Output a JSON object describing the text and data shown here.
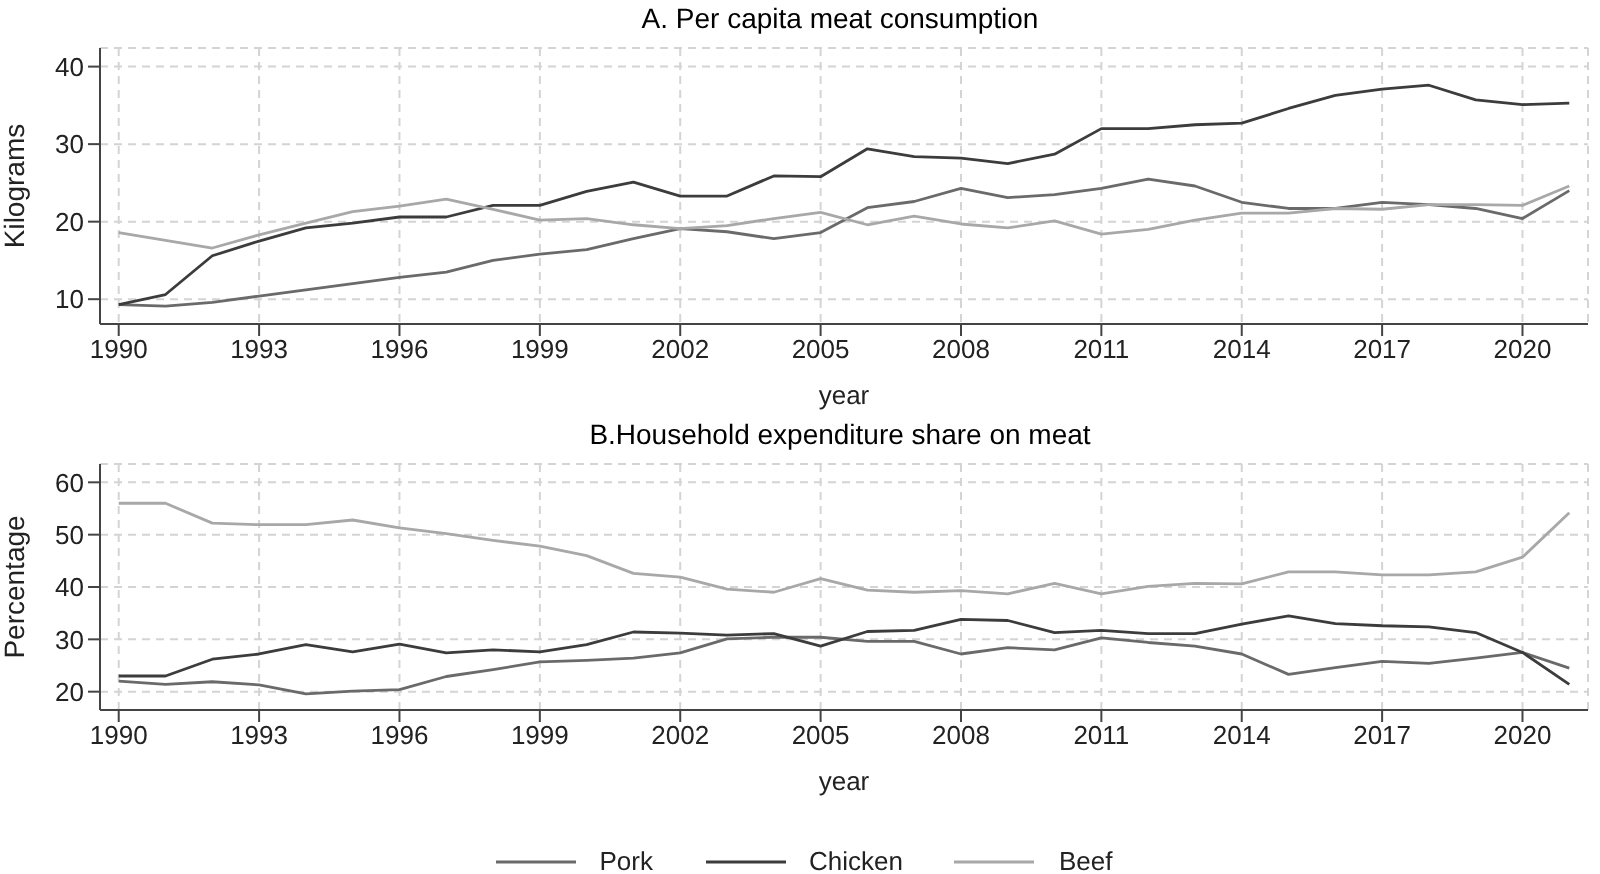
{
  "chart_data": [
    {
      "type": "line",
      "title": "A. Per capita meat consumption",
      "xlabel": "year",
      "ylabel": "Kilograms",
      "x": [
        1990,
        1991,
        1992,
        1993,
        1994,
        1995,
        1996,
        1997,
        1998,
        1999,
        2000,
        2001,
        2002,
        2003,
        2004,
        2005,
        2006,
        2007,
        2008,
        2009,
        2010,
        2011,
        2012,
        2013,
        2014,
        2015,
        2016,
        2017,
        2018,
        2019,
        2020,
        2021
      ],
      "xlim": [
        1989.6,
        2021.4
      ],
      "xticks": [
        1990,
        1993,
        1996,
        1999,
        2002,
        2005,
        2008,
        2011,
        2014,
        2017,
        2020
      ],
      "ylim": [
        6.8,
        42.4
      ],
      "yticks": [
        10,
        20,
        30,
        40
      ],
      "grid": true,
      "legend": false,
      "line_style": "solid",
      "marker": "none",
      "series": [
        {
          "color": "#6a6a6a",
          "values": [
            9.3,
            9.1,
            9.6,
            10.4,
            11.2,
            12.0,
            12.8,
            13.5,
            15.0,
            15.8,
            16.4,
            17.8,
            19.1,
            18.7,
            17.8,
            18.6,
            21.8,
            22.6,
            24.3,
            23.1,
            23.5,
            24.3,
            25.5,
            24.6,
            22.5,
            21.7,
            21.7,
            22.5,
            22.2,
            21.7,
            20.4,
            24.0
          ]
        },
        {
          "color": "#3c3c3c",
          "values": [
            9.3,
            10.6,
            15.6,
            17.5,
            19.2,
            19.8,
            20.6,
            20.6,
            22.1,
            22.1,
            23.9,
            25.1,
            23.3,
            23.3,
            25.9,
            25.8,
            29.4,
            28.4,
            28.2,
            27.5,
            28.7,
            32.0,
            32.0,
            32.5,
            32.7,
            34.6,
            36.3,
            37.1,
            37.6,
            35.7,
            35.1,
            35.3
          ]
        },
        {
          "color": "#a8a8a8",
          "values": [
            18.6,
            17.6,
            16.6,
            18.3,
            19.8,
            21.3,
            22.0,
            22.9,
            21.6,
            20.2,
            20.4,
            19.6,
            19.1,
            19.5,
            20.4,
            21.2,
            19.6,
            20.7,
            19.7,
            19.2,
            20.1,
            18.4,
            19.0,
            20.2,
            21.1,
            21.1,
            21.7,
            21.6,
            22.2,
            22.2,
            22.1,
            24.6
          ]
        }
      ]
    },
    {
      "type": "line",
      "title": "B.Household expenditure share on meat",
      "xlabel": "year",
      "ylabel": "Percentage",
      "x": [
        1990,
        1991,
        1992,
        1993,
        1994,
        1995,
        1996,
        1997,
        1998,
        1999,
        2000,
        2001,
        2002,
        2003,
        2004,
        2005,
        2006,
        2007,
        2008,
        2009,
        2010,
        2011,
        2012,
        2013,
        2014,
        2015,
        2016,
        2017,
        2018,
        2019,
        2020,
        2021
      ],
      "xlim": [
        1989.6,
        2021.4
      ],
      "xticks": [
        1990,
        1993,
        1996,
        1999,
        2002,
        2005,
        2008,
        2011,
        2014,
        2017,
        2020
      ],
      "ylim": [
        16.5,
        63.5
      ],
      "yticks": [
        20,
        30,
        40,
        50,
        60
      ],
      "grid": true,
      "legend": "bottom",
      "line_style": "solid",
      "marker": "none",
      "series": [
        {
          "name": "Pork",
          "color": "#6a6a6a",
          "values": [
            22.0,
            21.4,
            21.9,
            21.3,
            19.6,
            20.1,
            20.4,
            22.9,
            24.2,
            25.7,
            26.0,
            26.4,
            27.4,
            30.1,
            30.4,
            30.4,
            29.6,
            29.6,
            27.2,
            28.4,
            28.0,
            30.3,
            29.4,
            28.7,
            27.2,
            23.3,
            24.6,
            25.8,
            25.4,
            26.4,
            27.5,
            24.5
          ]
        },
        {
          "name": "Chicken",
          "color": "#3c3c3c",
          "values": [
            23.0,
            23.0,
            26.2,
            27.2,
            29.0,
            27.6,
            29.1,
            27.4,
            28.0,
            27.6,
            29.0,
            31.4,
            31.2,
            30.8,
            31.1,
            28.7,
            31.5,
            31.7,
            33.8,
            33.6,
            31.3,
            31.7,
            31.1,
            31.1,
            32.9,
            34.5,
            33.0,
            32.6,
            32.4,
            31.3,
            27.5,
            21.4
          ]
        },
        {
          "name": "Beef",
          "color": "#a8a8a8",
          "values": [
            56.0,
            56.0,
            52.2,
            51.9,
            51.9,
            52.8,
            51.3,
            50.2,
            48.9,
            47.8,
            46.0,
            42.6,
            41.9,
            39.6,
            39.0,
            41.6,
            39.4,
            39.0,
            39.3,
            38.7,
            40.7,
            38.7,
            40.1,
            40.7,
            40.6,
            42.9,
            42.9,
            42.3,
            42.3,
            42.9,
            45.7,
            54.2
          ]
        }
      ]
    }
  ]
}
